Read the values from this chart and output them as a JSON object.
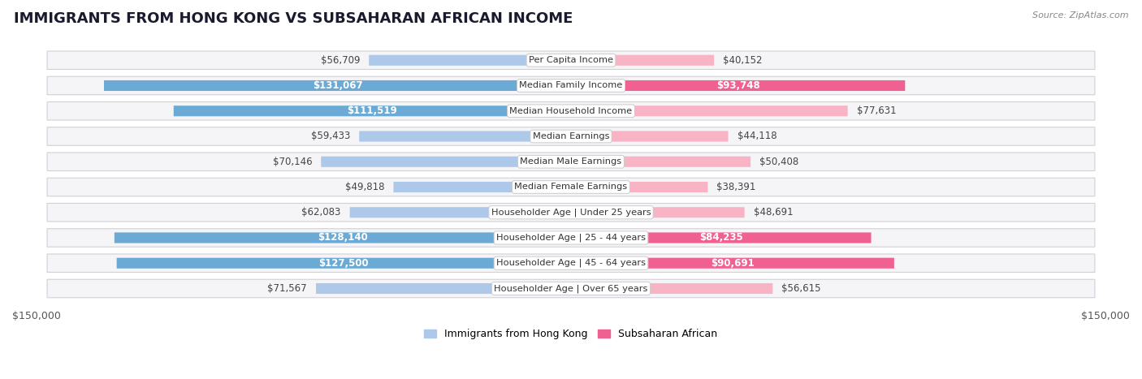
{
  "title": "IMMIGRANTS FROM HONG KONG VS SUBSAHARAN AFRICAN INCOME",
  "source": "Source: ZipAtlas.com",
  "categories": [
    "Per Capita Income",
    "Median Family Income",
    "Median Household Income",
    "Median Earnings",
    "Median Male Earnings",
    "Median Female Earnings",
    "Householder Age | Under 25 years",
    "Householder Age | 25 - 44 years",
    "Householder Age | 45 - 64 years",
    "Householder Age | Over 65 years"
  ],
  "hk_values": [
    56709,
    131067,
    111519,
    59433,
    70146,
    49818,
    62083,
    128140,
    127500,
    71567
  ],
  "ssa_values": [
    40152,
    93748,
    77631,
    44118,
    50408,
    38391,
    48691,
    84235,
    90691,
    56615
  ],
  "hk_color_light": "#adc8e8",
  "hk_color_dark": "#6aaad4",
  "ssa_color_light": "#f8b4c4",
  "ssa_color_dark": "#f06090",
  "row_bg_color": "#e8e8ec",
  "row_inner_color": "#f5f5f8",
  "axis_max": 150000,
  "xlabel_left": "$150,000",
  "xlabel_right": "$150,000",
  "legend_hk": "Immigrants from Hong Kong",
  "legend_ssa": "Subsaharan African",
  "hk_inside_threshold": 80000,
  "ssa_inside_threshold": 80000,
  "title_fontsize": 13,
  "value_fontsize": 8.5,
  "category_fontsize": 8.2,
  "source_fontsize": 8
}
